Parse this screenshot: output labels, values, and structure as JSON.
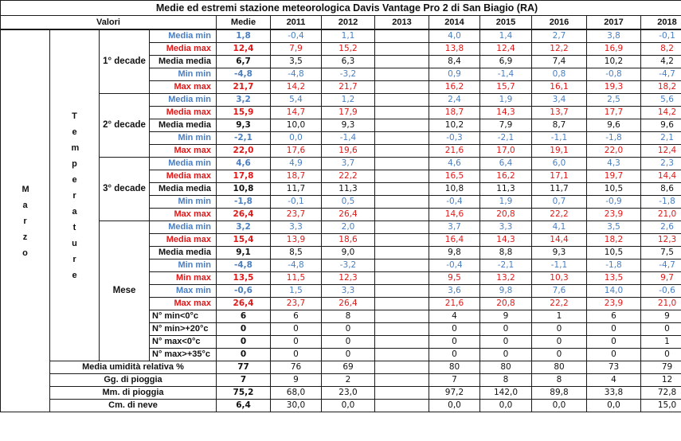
{
  "title": "Medie ed estremi stazione meteorologica Davis Vantage Pro 2 di San Biagio (RA)",
  "header": {
    "valori": "Valori",
    "medie": "Medie",
    "years": [
      "2011",
      "2012",
      "2013",
      "2014",
      "2015",
      "2016",
      "2017",
      "2018"
    ]
  },
  "month_label": "Marzo",
  "group_label": "Temperature",
  "colors": {
    "min": "#4a7fc2",
    "max": "#e01818",
    "media": "#111111"
  },
  "sections": [
    {
      "label": "1° decade",
      "rows": [
        {
          "label": "Media min",
          "type": "min",
          "media": "1,8",
          "values": [
            "-0,4",
            "1,1",
            "",
            "4,0",
            "1,4",
            "2,7",
            "3,8",
            "-0,1"
          ]
        },
        {
          "label": "Media max",
          "type": "max",
          "media": "12,4",
          "values": [
            "7,9",
            "15,2",
            "",
            "13,8",
            "12,4",
            "12,2",
            "16,9",
            "8,2"
          ]
        },
        {
          "label": "Media media",
          "type": "media",
          "media": "6,7",
          "values": [
            "3,5",
            "6,3",
            "",
            "8,4",
            "6,9",
            "7,4",
            "10,2",
            "4,2"
          ]
        },
        {
          "label": "Min min",
          "type": "min",
          "media": "-4,8",
          "values": [
            "-4,8",
            "-3,2",
            "",
            "0,9",
            "-1,4",
            "0,8",
            "-0,8",
            "-4,7"
          ]
        },
        {
          "label": "Max max",
          "type": "max",
          "media": "21,7",
          "values": [
            "14,2",
            "21,7",
            "",
            "16,2",
            "15,7",
            "16,1",
            "19,3",
            "18,2"
          ]
        }
      ]
    },
    {
      "label": "2° decade",
      "rows": [
        {
          "label": "Media min",
          "type": "min",
          "media": "3,2",
          "values": [
            "5,4",
            "1,2",
            "",
            "2,4",
            "1,9",
            "3,4",
            "2,5",
            "5,6"
          ]
        },
        {
          "label": "Media max",
          "type": "max",
          "media": "15,9",
          "values": [
            "14,7",
            "17,9",
            "",
            "18,7",
            "14,3",
            "13,7",
            "17,7",
            "14,2"
          ]
        },
        {
          "label": "Media media",
          "type": "media",
          "media": "9,3",
          "values": [
            "10,0",
            "9,3",
            "",
            "10,2",
            "7,9",
            "8,7",
            "9,6",
            "9,6"
          ]
        },
        {
          "label": "Min min",
          "type": "min",
          "media": "-2,1",
          "values": [
            "0,0",
            "-1,4",
            "",
            "-0,3",
            "-2,1",
            "-1,1",
            "-1,8",
            "2,1"
          ]
        },
        {
          "label": "Max max",
          "type": "max",
          "media": "22,0",
          "values": [
            "17,6",
            "19,6",
            "",
            "21,6",
            "17,0",
            "19,1",
            "22,0",
            "12,4"
          ]
        }
      ]
    },
    {
      "label": "3° decade",
      "rows": [
        {
          "label": "Media min",
          "type": "min",
          "media": "4,6",
          "values": [
            "4,9",
            "3,7",
            "",
            "4,6",
            "6,4",
            "6,0",
            "4,3",
            "2,3"
          ]
        },
        {
          "label": "Media max",
          "type": "max",
          "media": "17,8",
          "values": [
            "18,7",
            "22,2",
            "",
            "16,5",
            "16,2",
            "17,1",
            "19,7",
            "14,4"
          ]
        },
        {
          "label": "Media media",
          "type": "media",
          "media": "10,8",
          "values": [
            "11,7",
            "11,3",
            "",
            "10,8",
            "11,3",
            "11,7",
            "10,5",
            "8,6"
          ]
        },
        {
          "label": "Min min",
          "type": "min",
          "media": "-1,8",
          "values": [
            "-0,1",
            "0,5",
            "",
            "-0,4",
            "1,9",
            "0,7",
            "-0,9",
            "-1,8"
          ]
        },
        {
          "label": "Max max",
          "type": "max",
          "media": "26,4",
          "values": [
            "23,7",
            "26,4",
            "",
            "14,6",
            "20,8",
            "22,2",
            "23,9",
            "21,0"
          ]
        }
      ]
    }
  ],
  "mese": {
    "label": "Mese",
    "rows": [
      {
        "label": "Media min",
        "type": "min",
        "media": "3,2",
        "values": [
          "3,3",
          "2,0",
          "",
          "3,7",
          "3,3",
          "4,1",
          "3,5",
          "2,6"
        ]
      },
      {
        "label": "Media max",
        "type": "max",
        "media": "15,4",
        "values": [
          "13,9",
          "18,6",
          "",
          "16,4",
          "14,3",
          "14,4",
          "18,2",
          "12,3"
        ]
      },
      {
        "label": "Media media",
        "type": "media",
        "media": "9,1",
        "values": [
          "8,5",
          "9,0",
          "",
          "9,8",
          "8,8",
          "9,3",
          "10,5",
          "7,5"
        ]
      },
      {
        "label": "Min min",
        "type": "min",
        "media": "-4,8",
        "values": [
          "-4,8",
          "-3,2",
          "",
          "-0,4",
          "-2,1",
          "-1,1",
          "-1,8",
          "-4,7"
        ]
      },
      {
        "label": "Min max",
        "type": "max",
        "media": "13,5",
        "values": [
          "11,5",
          "12,3",
          "",
          "9,5",
          "13,2",
          "10,3",
          "13,5",
          "9,7"
        ]
      },
      {
        "label": "Max min",
        "type": "min",
        "media": "-0,6",
        "values": [
          "1,5",
          "3,3",
          "",
          "3,6",
          "9,8",
          "7,6",
          "14,0",
          "-0,6"
        ]
      },
      {
        "label": "Max max",
        "type": "max",
        "media": "26,4",
        "values": [
          "23,7",
          "26,4",
          "",
          "21,6",
          "20,8",
          "22,2",
          "23,9",
          "21,0"
        ]
      }
    ],
    "counts": [
      {
        "label": "N° min<0°c",
        "media": "6",
        "values": [
          "6",
          "8",
          "",
          "4",
          "9",
          "1",
          "6",
          "9"
        ]
      },
      {
        "label": "N° min>+20°c",
        "media": "0",
        "values": [
          "0",
          "0",
          "",
          "0",
          "0",
          "0",
          "0",
          "0"
        ]
      },
      {
        "label": "N° max<0°c",
        "media": "0",
        "values": [
          "0",
          "0",
          "",
          "0",
          "0",
          "0",
          "0",
          "1"
        ]
      },
      {
        "label": "N° max>+35°c",
        "media": "0",
        "values": [
          "0",
          "0",
          "",
          "0",
          "0",
          "0",
          "0",
          "0"
        ]
      }
    ]
  },
  "general": [
    {
      "label": "Media umidità relativa %",
      "media": "77",
      "values": [
        "76",
        "69",
        "",
        "80",
        "80",
        "80",
        "73",
        "79"
      ]
    },
    {
      "label": "Gg. di pioggia",
      "media": "7",
      "values": [
        "9",
        "2",
        "",
        "7",
        "8",
        "8",
        "4",
        "12"
      ]
    },
    {
      "label": "Mm. di pioggia",
      "media": "75,2",
      "values": [
        "68,0",
        "23,0",
        "",
        "97,2",
        "142,0",
        "89,8",
        "33,8",
        "72,8"
      ]
    },
    {
      "label": "Cm. di neve",
      "media": "6,4",
      "values": [
        "30,0",
        "0,0",
        "",
        "0,0",
        "0,0",
        "0,0",
        "0,0",
        "15,0"
      ]
    }
  ]
}
